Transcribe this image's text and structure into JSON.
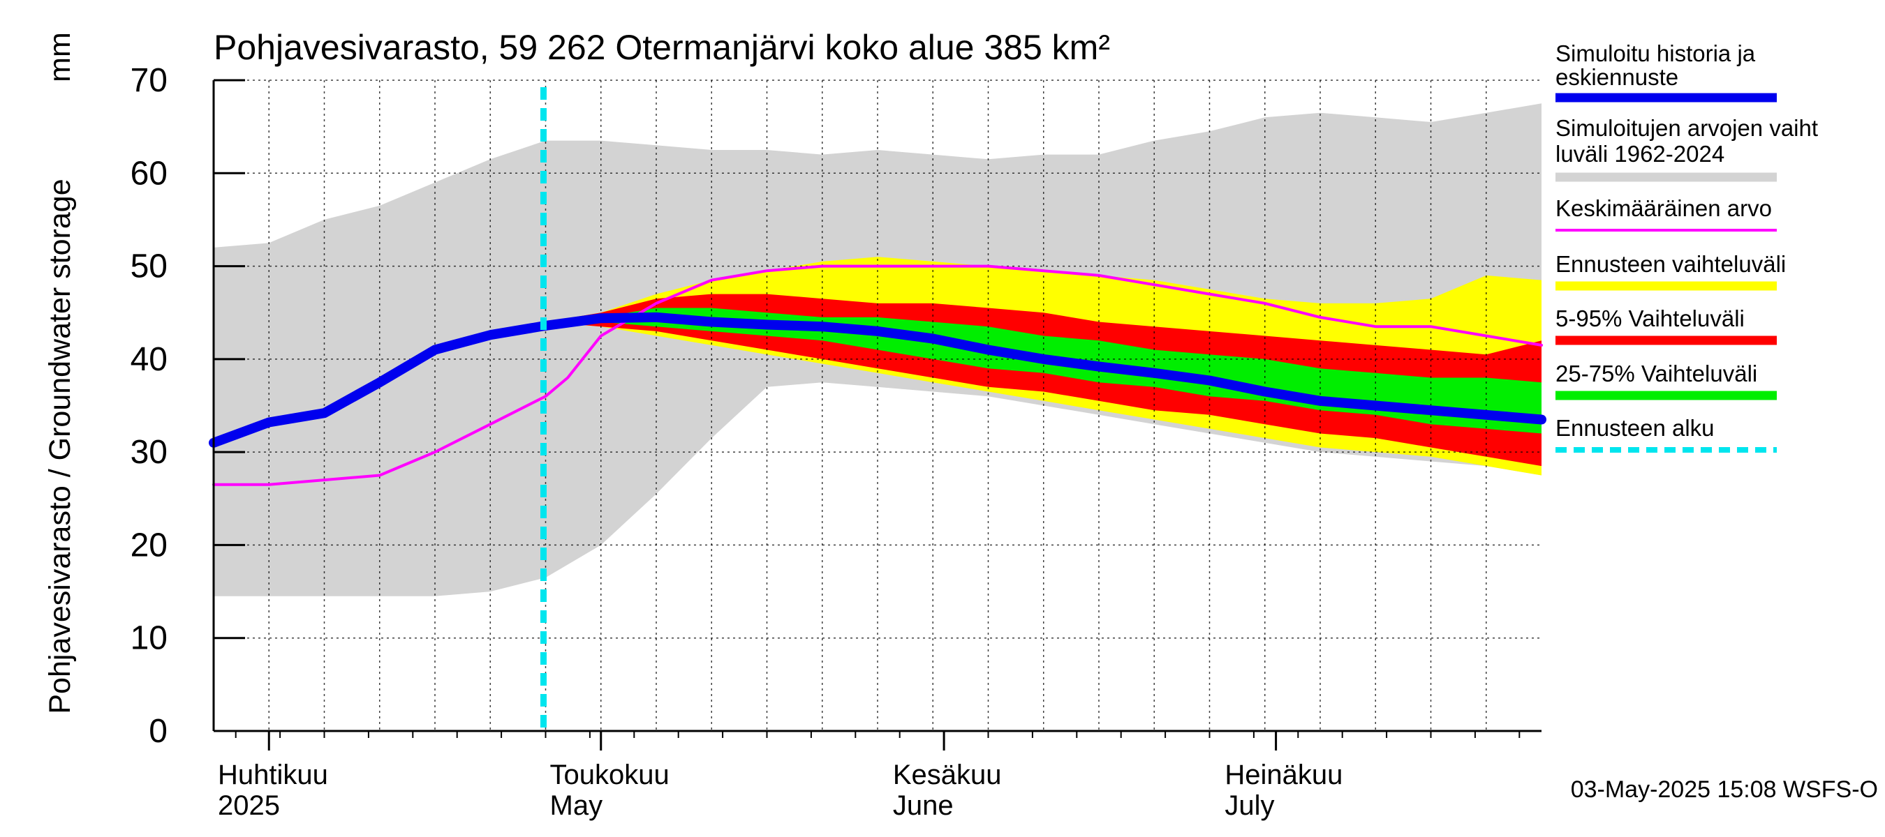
{
  "chart_data": {
    "type": "area",
    "title": "Pohjavesivarasto, 59 262 Otermanjärvi koko alue 385 km²",
    "ylabel": "Pohjavesivarasto / Groundwater storage",
    "yunit": "mm",
    "ylim": [
      0,
      70
    ],
    "yticks": [
      "0",
      "10",
      "20",
      "30",
      "40",
      "50",
      "60",
      "70"
    ],
    "grid": true,
    "x_domain_days": [
      0,
      120
    ],
    "x_note": "days since 2025-03-27",
    "month_labels": [
      {
        "fi": "Huhtikuu",
        "en": "2025",
        "day": 0
      },
      {
        "fi": "Toukokuu",
        "en": "May",
        "day": 30
      },
      {
        "fi": "Kesäkuu",
        "en": "June",
        "day": 61
      },
      {
        "fi": "Heinäkuu",
        "en": "July",
        "day": 91
      }
    ],
    "month_boundary_days": [
      5,
      35,
      66,
      96
    ],
    "forecast_start_day": 30,
    "series": [
      {
        "name": "Simuloitujen arvojen vaihteluväli 1962-2024",
        "kind": "band",
        "color": "#d3d3d3",
        "x": [
          0,
          5,
          10,
          15,
          20,
          25,
          30,
          35,
          40,
          45,
          50,
          55,
          60,
          65,
          70,
          75,
          80,
          85,
          90,
          95,
          100,
          105,
          110,
          115,
          120
        ],
        "upper": [
          52,
          52.5,
          55,
          56.5,
          59,
          61.5,
          63.5,
          63.5,
          63,
          62.5,
          62.5,
          62,
          62.5,
          62,
          61.5,
          62,
          62,
          63.5,
          64.5,
          66,
          66.5,
          66,
          65.5,
          66.5,
          67.5
        ],
        "lower": [
          14.5,
          14.5,
          14.5,
          14.5,
          14.5,
          15,
          16.5,
          20,
          25.5,
          31.5,
          37,
          37.5,
          37,
          36.5,
          36,
          35,
          34,
          33,
          32,
          31,
          30,
          29.5,
          29,
          28.5,
          27.5
        ]
      },
      {
        "name": "Ennusteen vaihteluväli",
        "kind": "band",
        "color": "#ffff00",
        "x": [
          30,
          35,
          40,
          45,
          50,
          55,
          60,
          65,
          70,
          75,
          80,
          85,
          90,
          95,
          100,
          105,
          110,
          115,
          120
        ],
        "upper": [
          44,
          45,
          47,
          48.5,
          49.5,
          50.5,
          51,
          50.5,
          50,
          49.5,
          49,
          48.5,
          47.5,
          46.5,
          46,
          46,
          46.5,
          49,
          48.5
        ],
        "lower": [
          44,
          43.5,
          42.5,
          41.5,
          40.5,
          39.5,
          38.5,
          37.5,
          36.5,
          35.5,
          34.5,
          33.5,
          32.5,
          31.5,
          30.5,
          30,
          29.5,
          28.5,
          27.5
        ]
      },
      {
        "name": "5-95% Vaihteluväli",
        "kind": "band",
        "color": "#ff0000",
        "x": [
          30,
          35,
          40,
          45,
          50,
          55,
          60,
          65,
          70,
          75,
          80,
          85,
          90,
          95,
          100,
          105,
          110,
          115,
          120
        ],
        "upper": [
          44,
          45,
          46.5,
          47,
          47,
          46.5,
          46,
          46,
          45.5,
          45,
          44,
          43.5,
          43,
          42.5,
          42,
          41.5,
          41,
          40.5,
          42
        ],
        "lower": [
          44,
          43.5,
          43,
          42,
          41,
          40,
          39,
          38,
          37,
          36.5,
          35.5,
          34.5,
          34,
          33,
          32,
          31.5,
          30.5,
          29.5,
          28.5
        ]
      },
      {
        "name": "25-75% Vaihteluväli",
        "kind": "band",
        "color": "#00ee00",
        "x": [
          30,
          35,
          40,
          45,
          50,
          55,
          60,
          65,
          70,
          75,
          80,
          85,
          90,
          95,
          100,
          105,
          110,
          115,
          120
        ],
        "upper": [
          44,
          44.5,
          45.5,
          45.5,
          45,
          44.5,
          44.5,
          44,
          43.5,
          42.5,
          42,
          41,
          40.5,
          40,
          39,
          38.5,
          38,
          38,
          37.5
        ],
        "lower": [
          44,
          44,
          43.5,
          43,
          42.5,
          42,
          41,
          40,
          39,
          38.5,
          37.5,
          37,
          36,
          35.5,
          34.5,
          34,
          33,
          32.5,
          32
        ]
      },
      {
        "name": "Keskimääräinen arvo",
        "kind": "line",
        "color": "#ff00ff",
        "x": [
          0,
          5,
          10,
          15,
          20,
          25,
          30,
          32,
          35,
          40,
          45,
          50,
          55,
          60,
          65,
          70,
          75,
          80,
          85,
          90,
          95,
          100,
          105,
          110,
          115,
          120
        ],
        "y": [
          26.5,
          26.5,
          27,
          27.5,
          30,
          33,
          36,
          38,
          42.5,
          46,
          48.5,
          49.5,
          50,
          50,
          50,
          50,
          49.5,
          49,
          48,
          47,
          46,
          44.5,
          43.5,
          43.5,
          42.5,
          41.5
        ]
      },
      {
        "name": "Simuloitu historia ja keskiennuste",
        "kind": "line",
        "color": "#0000ee",
        "x": [
          0,
          5,
          10,
          15,
          20,
          25,
          30,
          35,
          40,
          45,
          50,
          55,
          60,
          65,
          70,
          75,
          80,
          85,
          90,
          95,
          100,
          105,
          110,
          115,
          120
        ],
        "y": [
          31,
          33.2,
          34.2,
          37.5,
          41,
          42.6,
          43.6,
          44.4,
          44.5,
          44,
          43.7,
          43.5,
          43,
          42.2,
          41,
          40,
          39.2,
          38.5,
          37.7,
          36.5,
          35.5,
          35,
          34.5,
          34,
          33.5
        ]
      }
    ],
    "legend": [
      {
        "label": "Simuloitu historia ja keskiennuste",
        "color": "#0000ee",
        "style": "thick"
      },
      {
        "label": "Simuloitujen arvojen vaihteluväli 1962-2024",
        "color": "#d3d3d3",
        "style": "thick"
      },
      {
        "label": "Keskimääräinen arvo",
        "color": "#ff00ff",
        "style": "thin"
      },
      {
        "label": "Ennusteen vaihteluväli",
        "color": "#ffff00",
        "style": "thick"
      },
      {
        "label": "5-95% Vaihteluväli",
        "color": "#ff0000",
        "style": "thick"
      },
      {
        "label": "25-75% Vaihteluväli",
        "color": "#00ee00",
        "style": "thick"
      },
      {
        "label": "Ennusteen alku",
        "color": "#00e5ee",
        "style": "dashed"
      }
    ],
    "footer": "03-May-2025 15:08 WSFS-O"
  }
}
